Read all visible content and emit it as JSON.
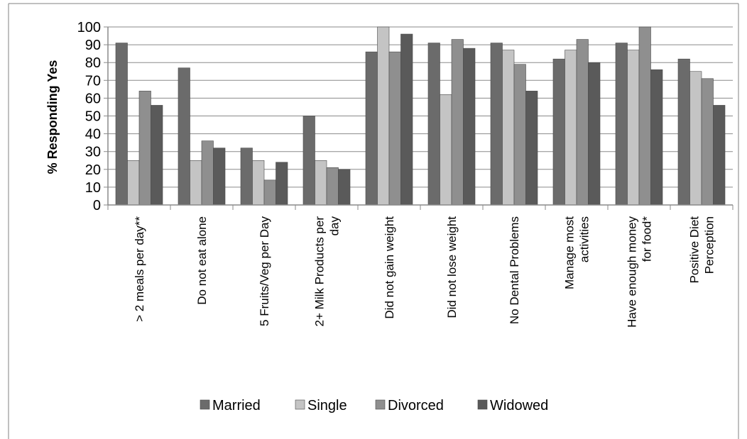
{
  "chart_data": {
    "type": "bar",
    "title": "",
    "xlabel": "",
    "ylabel": "% Responding Yes",
    "ylim": [
      0,
      100
    ],
    "yticks": [
      0,
      10,
      20,
      30,
      40,
      50,
      60,
      70,
      80,
      90,
      100
    ],
    "grid": true,
    "legend_position": "bottom",
    "categories": [
      "> 2 meals per day**",
      "Do not eat alone",
      "5 Fruits/Veg per Day",
      "2+ Milk Products per day",
      "Did not gain weight",
      "Did not lose weight",
      "No Dental Problems",
      "Manage most activities",
      "Have enough money for food*",
      "Positive Diet Perception"
    ],
    "category_lines": [
      [
        "> 2 meals per day**"
      ],
      [
        "Do not eat alone"
      ],
      [
        "5 Fruits/Veg per Day"
      ],
      [
        "2+ Milk Products per",
        "day"
      ],
      [
        "Did not gain weight"
      ],
      [
        "Did not lose weight"
      ],
      [
        "No Dental Problems"
      ],
      [
        "Manage most",
        "activities"
      ],
      [
        "Have enough money",
        "for food*"
      ],
      [
        "Positive Diet",
        "Perception"
      ]
    ],
    "series": [
      {
        "name": "Married",
        "color": "#6b6b6b",
        "values": [
          91,
          77,
          32,
          50,
          86,
          91,
          91,
          82,
          91,
          82
        ]
      },
      {
        "name": "Single",
        "color": "#c4c4c4",
        "values": [
          25,
          25,
          25,
          25,
          100,
          62,
          87,
          87,
          87,
          75
        ]
      },
      {
        "name": "Divorced",
        "color": "#8f8f8f",
        "values": [
          64,
          36,
          14,
          21,
          86,
          93,
          79,
          93,
          100,
          71
        ]
      },
      {
        "name": "Widowed",
        "color": "#5a5a5a",
        "values": [
          56,
          32,
          24,
          20,
          96,
          88,
          64,
          80,
          76,
          56
        ]
      }
    ]
  }
}
